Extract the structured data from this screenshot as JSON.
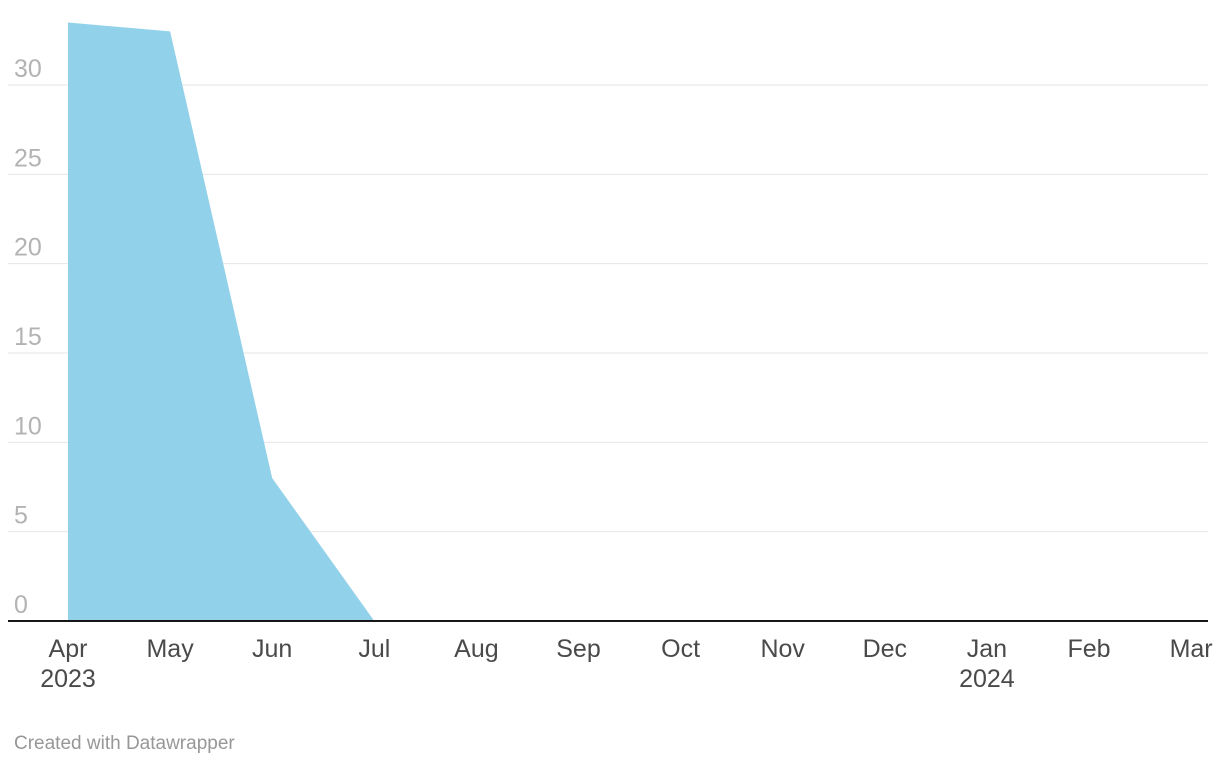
{
  "chart_data": {
    "type": "area",
    "title": "",
    "xlabel": "",
    "ylabel": "",
    "categories": [
      {
        "label": "Apr",
        "sublabel": "2023"
      },
      {
        "label": "May",
        "sublabel": ""
      },
      {
        "label": "Jun",
        "sublabel": ""
      },
      {
        "label": "Jul",
        "sublabel": ""
      },
      {
        "label": "Aug",
        "sublabel": ""
      },
      {
        "label": "Sep",
        "sublabel": ""
      },
      {
        "label": "Oct",
        "sublabel": ""
      },
      {
        "label": "Nov",
        "sublabel": ""
      },
      {
        "label": "Dec",
        "sublabel": ""
      },
      {
        "label": "Jan",
        "sublabel": "2024"
      },
      {
        "label": "Feb",
        "sublabel": ""
      },
      {
        "label": "Mar",
        "sublabel": ""
      }
    ],
    "values": [
      33.5,
      33,
      8,
      0,
      0,
      0,
      0,
      0,
      0,
      0,
      0,
      0
    ],
    "yticks": [
      0,
      5,
      10,
      15,
      20,
      25,
      30
    ],
    "ylim": [
      0,
      33.5
    ],
    "grid": true,
    "legend": "none",
    "area_color": "#92d1ea",
    "grid_color": "#e6e6e6",
    "axis_color": "#161616",
    "ytick_color": "#b3b3b3",
    "xtick_color": "#4a4a4a"
  },
  "footer": {
    "credit": "Created with Datawrapper"
  }
}
